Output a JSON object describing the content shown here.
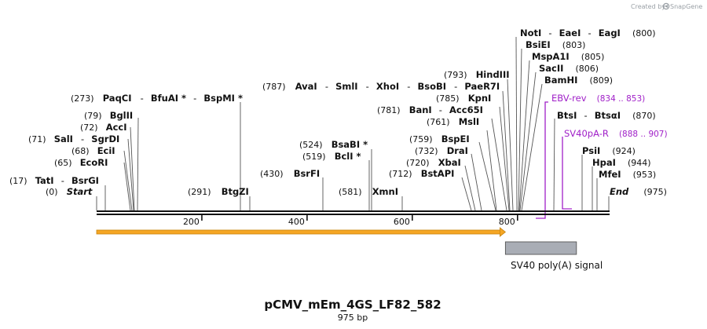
{
  "watermark": {
    "prefix": "Created by",
    "brand": "SnapGene",
    "icon": "snapgene-logo-icon",
    "color": "#9aa0a6"
  },
  "map": {
    "name": "pCMV_mEm_4GS_LF82_582",
    "length_label": "975 bp",
    "length": 975,
    "ticks": [
      200,
      400,
      600,
      800
    ],
    "start_label": "Start",
    "start_pos": "(0)",
    "end_label": "End",
    "end_pos": "(975)"
  },
  "sites": [
    {
      "names": [
        "TatI",
        "BsrGI"
      ],
      "pos": "(17)"
    },
    {
      "names": [
        "EcoRI"
      ],
      "pos": "(65)"
    },
    {
      "names": [
        "EciI"
      ],
      "pos": "(68)"
    },
    {
      "names": [
        "SalI",
        "SgrDI"
      ],
      "pos": "(71)"
    },
    {
      "names": [
        "AccI"
      ],
      "pos": "(72)"
    },
    {
      "names": [
        "BglII"
      ],
      "pos": "(79)"
    },
    {
      "names": [
        "PaqCI",
        "BfuAI *",
        "BspMI *"
      ],
      "pos": "(273)"
    },
    {
      "names": [
        "BtgZI"
      ],
      "pos": "(291)"
    },
    {
      "names": [
        "BsrFI"
      ],
      "pos": "(430)"
    },
    {
      "names": [
        "BclI *"
      ],
      "pos": "(519)"
    },
    {
      "names": [
        "BsaBI *"
      ],
      "pos": "(524)"
    },
    {
      "names": [
        "XmnI"
      ],
      "pos": "(581)"
    },
    {
      "names": [
        "BstAPI"
      ],
      "pos": "(712)"
    },
    {
      "names": [
        "XbaI"
      ],
      "pos": "(720)"
    },
    {
      "names": [
        "DraI"
      ],
      "pos": "(732)"
    },
    {
      "names": [
        "BspEI"
      ],
      "pos": "(759)"
    },
    {
      "names": [
        "MslI"
      ],
      "pos": "(761)"
    },
    {
      "names": [
        "BanI",
        "Acc65I"
      ],
      "pos": "(781)"
    },
    {
      "names": [
        "KpnI"
      ],
      "pos": "(785)"
    },
    {
      "names": [
        "AvaI",
        "SmlI",
        "XhoI",
        "BsoBI",
        "PaeR7I"
      ],
      "pos": "(787)"
    },
    {
      "names": [
        "HindIII"
      ],
      "pos": "(793)"
    },
    {
      "names": [
        "NotI",
        "EaeI",
        "EagI"
      ],
      "pos": "(800)"
    },
    {
      "names": [
        "BsiEI"
      ],
      "pos": "(803)"
    },
    {
      "names": [
        "MspA1I"
      ],
      "pos": "(805)"
    },
    {
      "names": [
        "SacII"
      ],
      "pos": "(806)"
    },
    {
      "names": [
        "BamHI"
      ],
      "pos": "(809)"
    },
    {
      "names": [
        "BtsI",
        "BtsαI"
      ],
      "pos": "(870)"
    },
    {
      "names": [
        "PsiI"
      ],
      "pos": "(924)"
    },
    {
      "names": [
        "HpaI"
      ],
      "pos": "(944)"
    },
    {
      "names": [
        "MfeI"
      ],
      "pos": "(953)"
    }
  ],
  "primers": [
    {
      "name": "EBV-rev",
      "range": "(834 .. 853)",
      "color": "#a020c8"
    },
    {
      "name": "SV40pA-R",
      "range": "(888 .. 907)",
      "color": "#a020c8"
    }
  ],
  "features": [
    {
      "name": "",
      "start": 1,
      "end": 777,
      "type": "orf",
      "color": "#f5a623"
    },
    {
      "name": "SV40 poly(A) signal",
      "start": 777,
      "end": 912,
      "type": "misc",
      "color": "#a9adb5"
    }
  ]
}
